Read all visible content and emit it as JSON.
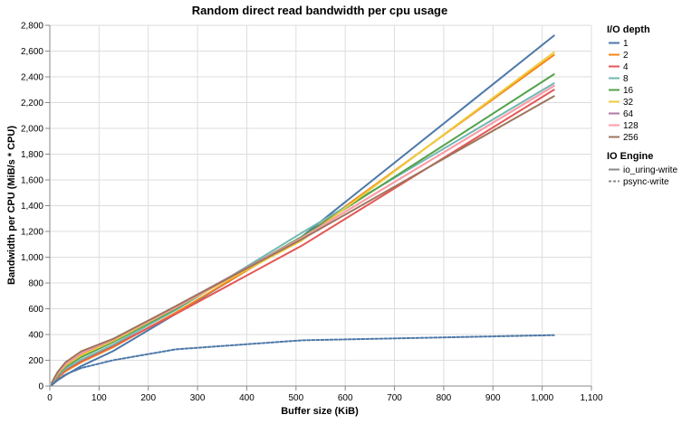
{
  "chart_data": {
    "type": "line",
    "title": "Random direct read bandwidth per cpu usage",
    "xlabel": "Buffer size (KiB)",
    "ylabel": "Bandwidth per CPU (MiB/s * CPU)",
    "xlim": [
      0,
      1100
    ],
    "ylim": [
      0,
      2800
    ],
    "xticks": [
      0,
      100,
      200,
      300,
      400,
      500,
      600,
      700,
      800,
      900,
      1000,
      1100
    ],
    "xtick_labels": [
      "0",
      "100",
      "200",
      "300",
      "400",
      "500",
      "600",
      "700",
      "800",
      "900",
      "1,000",
      "1,100"
    ],
    "yticks": [
      0,
      200,
      400,
      600,
      800,
      1000,
      1200,
      1400,
      1600,
      1800,
      2000,
      2200,
      2400,
      2600,
      2800
    ],
    "ytick_labels": [
      "0",
      "200",
      "400",
      "600",
      "800",
      "1,000",
      "1,200",
      "1,400",
      "1,600",
      "1,800",
      "2,000",
      "2,200",
      "2,400",
      "2,600",
      "2,800"
    ],
    "grid": true,
    "legend_placement": "right",
    "legends": [
      {
        "title": "I/O depth",
        "kind": "color",
        "entries": [
          {
            "label": "1",
            "color": "#4c78a8"
          },
          {
            "label": "2",
            "color": "#f58518"
          },
          {
            "label": "4",
            "color": "#e45756"
          },
          {
            "label": "8",
            "color": "#72b7b2"
          },
          {
            "label": "16",
            "color": "#54a24b"
          },
          {
            "label": "32",
            "color": "#eeca3b"
          },
          {
            "label": "64",
            "color": "#b279a2"
          },
          {
            "label": "128",
            "color": "#ff9da6"
          },
          {
            "label": "256",
            "color": "#9d755d"
          }
        ]
      },
      {
        "title": "IO Engine",
        "kind": "dash",
        "entries": [
          {
            "label": "io_uring-write",
            "dash": "solid",
            "color": "#888888"
          },
          {
            "label": "psync-write",
            "dash": "dashed",
            "color": "#888888"
          }
        ]
      }
    ],
    "x": [
      4,
      8,
      16,
      32,
      64,
      128,
      256,
      512,
      1024
    ],
    "series": [
      {
        "name": "1",
        "engine": "io_uring-write",
        "color": "#4c78a8",
        "dash": "solid",
        "values": [
          8,
          20,
          45,
          85,
          155,
          270,
          560,
          1160,
          2720
        ]
      },
      {
        "name": "2",
        "engine": "io_uring-write",
        "color": "#f58518",
        "dash": "solid",
        "values": [
          12,
          30,
          65,
          115,
          185,
          300,
          570,
          1150,
          2570
        ]
      },
      {
        "name": "4",
        "engine": "io_uring-write",
        "color": "#e45756",
        "dash": "solid",
        "values": [
          14,
          34,
          72,
          125,
          195,
          310,
          560,
          1090,
          2300
        ]
      },
      {
        "name": "8",
        "engine": "io_uring-write",
        "color": "#72b7b2",
        "dash": "solid",
        "values": [
          16,
          38,
          80,
          135,
          205,
          320,
          590,
          1190,
          2350
        ]
      },
      {
        "name": "16",
        "engine": "io_uring-write",
        "color": "#54a24b",
        "dash": "solid",
        "values": [
          18,
          42,
          88,
          150,
          225,
          340,
          600,
          1160,
          2420
        ]
      },
      {
        "name": "32",
        "engine": "io_uring-write",
        "color": "#eeca3b",
        "dash": "solid",
        "values": [
          20,
          46,
          95,
          160,
          240,
          350,
          610,
          1130,
          2590
        ]
      },
      {
        "name": "64",
        "engine": "io_uring-write",
        "color": "#b279a2",
        "dash": "solid",
        "values": [
          22,
          50,
          100,
          170,
          255,
          360,
          620,
          1150,
          2330
        ]
      },
      {
        "name": "128",
        "engine": "io_uring-write",
        "color": "#ff9da6",
        "dash": "solid",
        "values": [
          20,
          50,
          100,
          172,
          258,
          362,
          610,
          1150,
          2330
        ]
      },
      {
        "name": "256",
        "engine": "io_uring-write",
        "color": "#9d755d",
        "dash": "solid",
        "values": [
          25,
          55,
          110,
          185,
          270,
          365,
          620,
          1140,
          2250
        ]
      },
      {
        "name": "1",
        "engine": "psync-write",
        "color": "#4c78a8",
        "dash": "dashed",
        "values": [
          8,
          22,
          50,
          90,
          140,
          200,
          285,
          355,
          395
        ]
      }
    ]
  }
}
